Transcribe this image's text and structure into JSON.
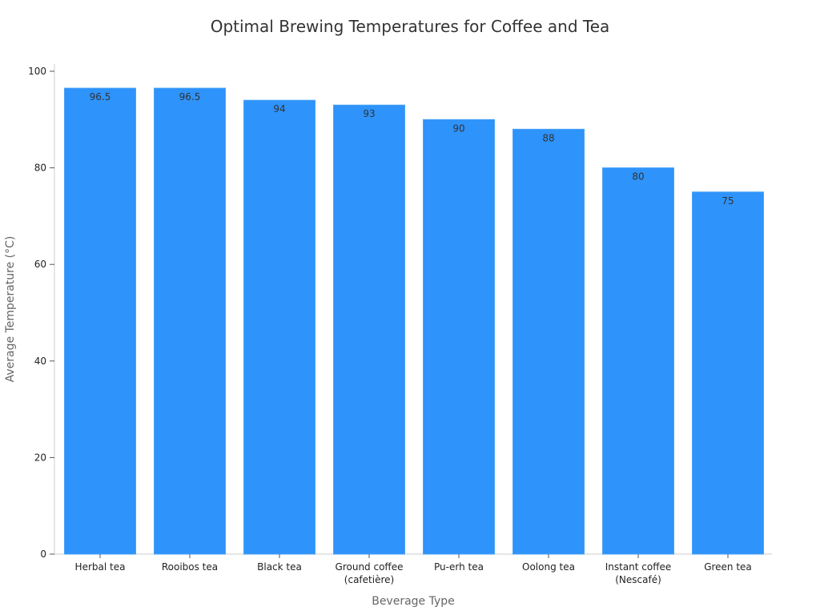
{
  "chart_data": {
    "type": "bar",
    "title": "Optimal Brewing Temperatures for Coffee and Tea",
    "xlabel": "Beverage Type",
    "ylabel": "Average Temperature (°C)",
    "ylim": [
      0,
      100
    ],
    "yticks": [
      0,
      20,
      40,
      60,
      80,
      100
    ],
    "grid": false,
    "categories": [
      [
        "Herbal tea"
      ],
      [
        "Rooibos tea"
      ],
      [
        "Black tea"
      ],
      [
        "Ground coffee",
        "(cafetière)"
      ],
      [
        "Pu-erh tea"
      ],
      [
        "Oolong tea"
      ],
      [
        "Instant coffee",
        "(Nescafé)"
      ],
      [
        "Green tea"
      ]
    ],
    "values": [
      96.5,
      96.5,
      94,
      93,
      90,
      88,
      80,
      75
    ],
    "data_labels": [
      "96.5",
      "96.5",
      "94",
      "93",
      "90",
      "88",
      "80",
      "75"
    ],
    "bar_color": "#2E93FA"
  }
}
